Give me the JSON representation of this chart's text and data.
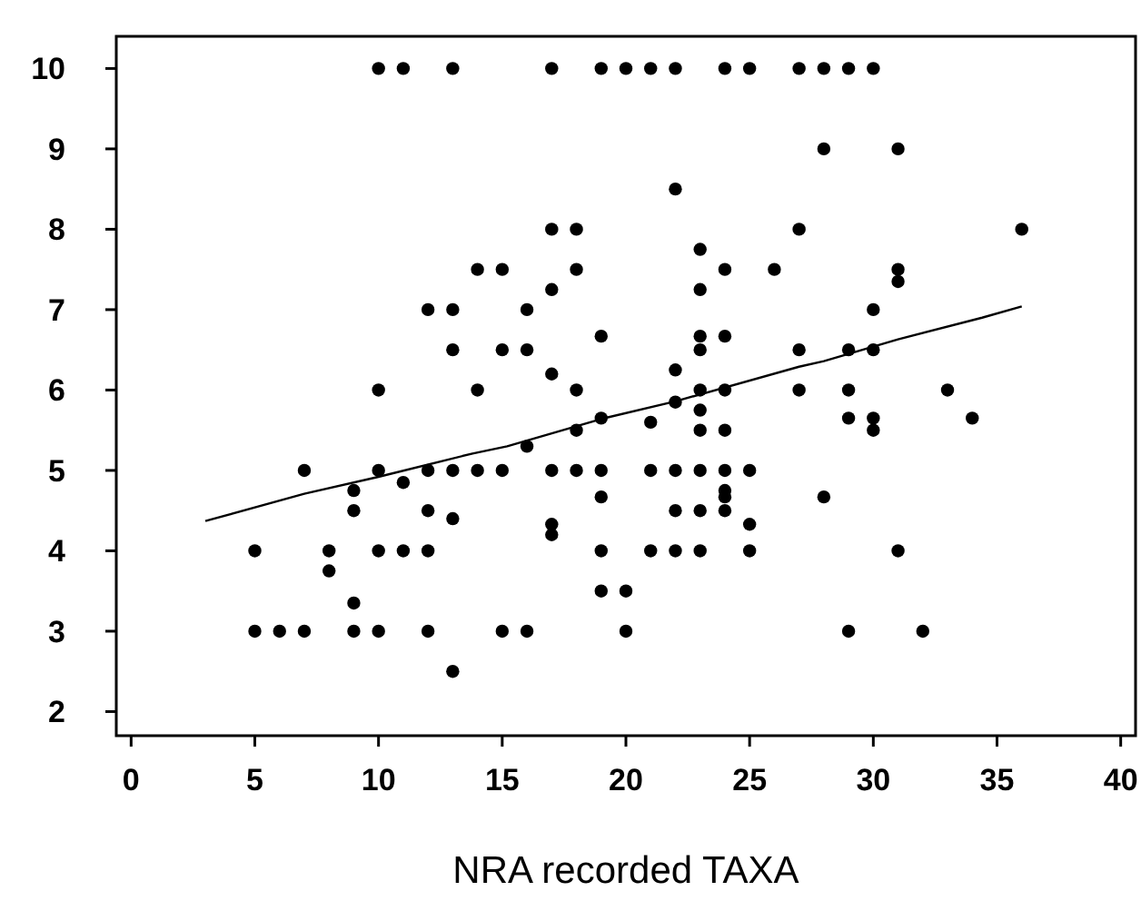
{
  "chart_data": {
    "type": "scatter",
    "xlabel": "NRA recorded TAXA",
    "xlim": [
      -0.6,
      40.6
    ],
    "ylim": [
      1.7,
      10.4
    ],
    "xticks": [
      0,
      5,
      10,
      15,
      20,
      25,
      30,
      35,
      40
    ],
    "yticks": [
      2,
      3,
      4,
      5,
      6,
      7,
      8,
      9,
      10
    ],
    "grid": false,
    "series": [
      {
        "color": "#000000",
        "marker": "circle",
        "x": [
          10,
          11,
          13,
          17,
          19,
          20,
          21,
          22,
          24,
          25,
          27,
          28,
          29,
          30,
          28,
          31,
          22,
          17,
          18,
          27,
          36,
          23,
          14,
          15,
          18,
          24,
          26,
          31,
          31,
          17,
          23,
          12,
          13,
          16,
          30,
          19,
          23,
          24,
          13,
          15,
          16,
          23,
          27,
          29,
          30,
          17,
          22,
          10,
          14,
          18,
          23,
          24,
          27,
          29,
          33,
          22,
          23,
          19,
          29,
          30,
          34,
          21,
          18,
          23,
          24,
          30,
          16,
          7,
          10,
          12,
          13,
          14,
          15,
          17,
          18,
          19,
          21,
          22,
          23,
          24,
          25,
          11,
          9,
          24,
          19,
          24,
          28,
          9,
          12,
          22,
          23,
          24,
          13,
          17,
          25,
          17,
          5,
          8,
          10,
          11,
          12,
          19,
          21,
          22,
          23,
          25,
          31,
          8,
          9,
          19,
          20,
          5,
          6,
          7,
          9,
          10,
          12,
          15,
          16,
          20,
          29,
          32,
          13
        ],
        "values": [
          10,
          10,
          10,
          10,
          10,
          10,
          10,
          10,
          10,
          10,
          10,
          10,
          10,
          10,
          9,
          9,
          8.5,
          8,
          8,
          8,
          8,
          7.75,
          7.5,
          7.5,
          7.5,
          7.5,
          7.5,
          7.5,
          7.35,
          7.25,
          7.25,
          7,
          7,
          7,
          7,
          6.67,
          6.67,
          6.67,
          6.5,
          6.5,
          6.5,
          6.5,
          6.5,
          6.5,
          6.5,
          6.2,
          6.25,
          6,
          6,
          6,
          6,
          6,
          6,
          6,
          6,
          5.85,
          5.75,
          5.65,
          5.65,
          5.65,
          5.65,
          5.6,
          5.5,
          5.5,
          5.5,
          5.5,
          5.3,
          5,
          5,
          5,
          5,
          5,
          5,
          5,
          5,
          5,
          5,
          5,
          5,
          5,
          5,
          4.85,
          4.75,
          4.75,
          4.67,
          4.67,
          4.67,
          4.5,
          4.5,
          4.5,
          4.5,
          4.5,
          4.4,
          4.33,
          4.33,
          4.2,
          4,
          4,
          4,
          4,
          4,
          4,
          4,
          4,
          4,
          4,
          4,
          3.75,
          3.35,
          3.5,
          3.5,
          3,
          3,
          3,
          3,
          3,
          3,
          3,
          3,
          3,
          3,
          3,
          2.5
        ]
      },
      {
        "type": "line",
        "color": "#000000",
        "line_style": "solid",
        "marker": "none",
        "x": [
          3,
          7,
          10,
          13.8,
          15.2,
          19,
          22,
          27,
          28,
          31,
          34.4,
          36
        ],
        "values": [
          4.37,
          4.71,
          4.92,
          5.21,
          5.3,
          5.64,
          5.86,
          6.29,
          6.36,
          6.63,
          6.9,
          7.04
        ]
      }
    ]
  }
}
